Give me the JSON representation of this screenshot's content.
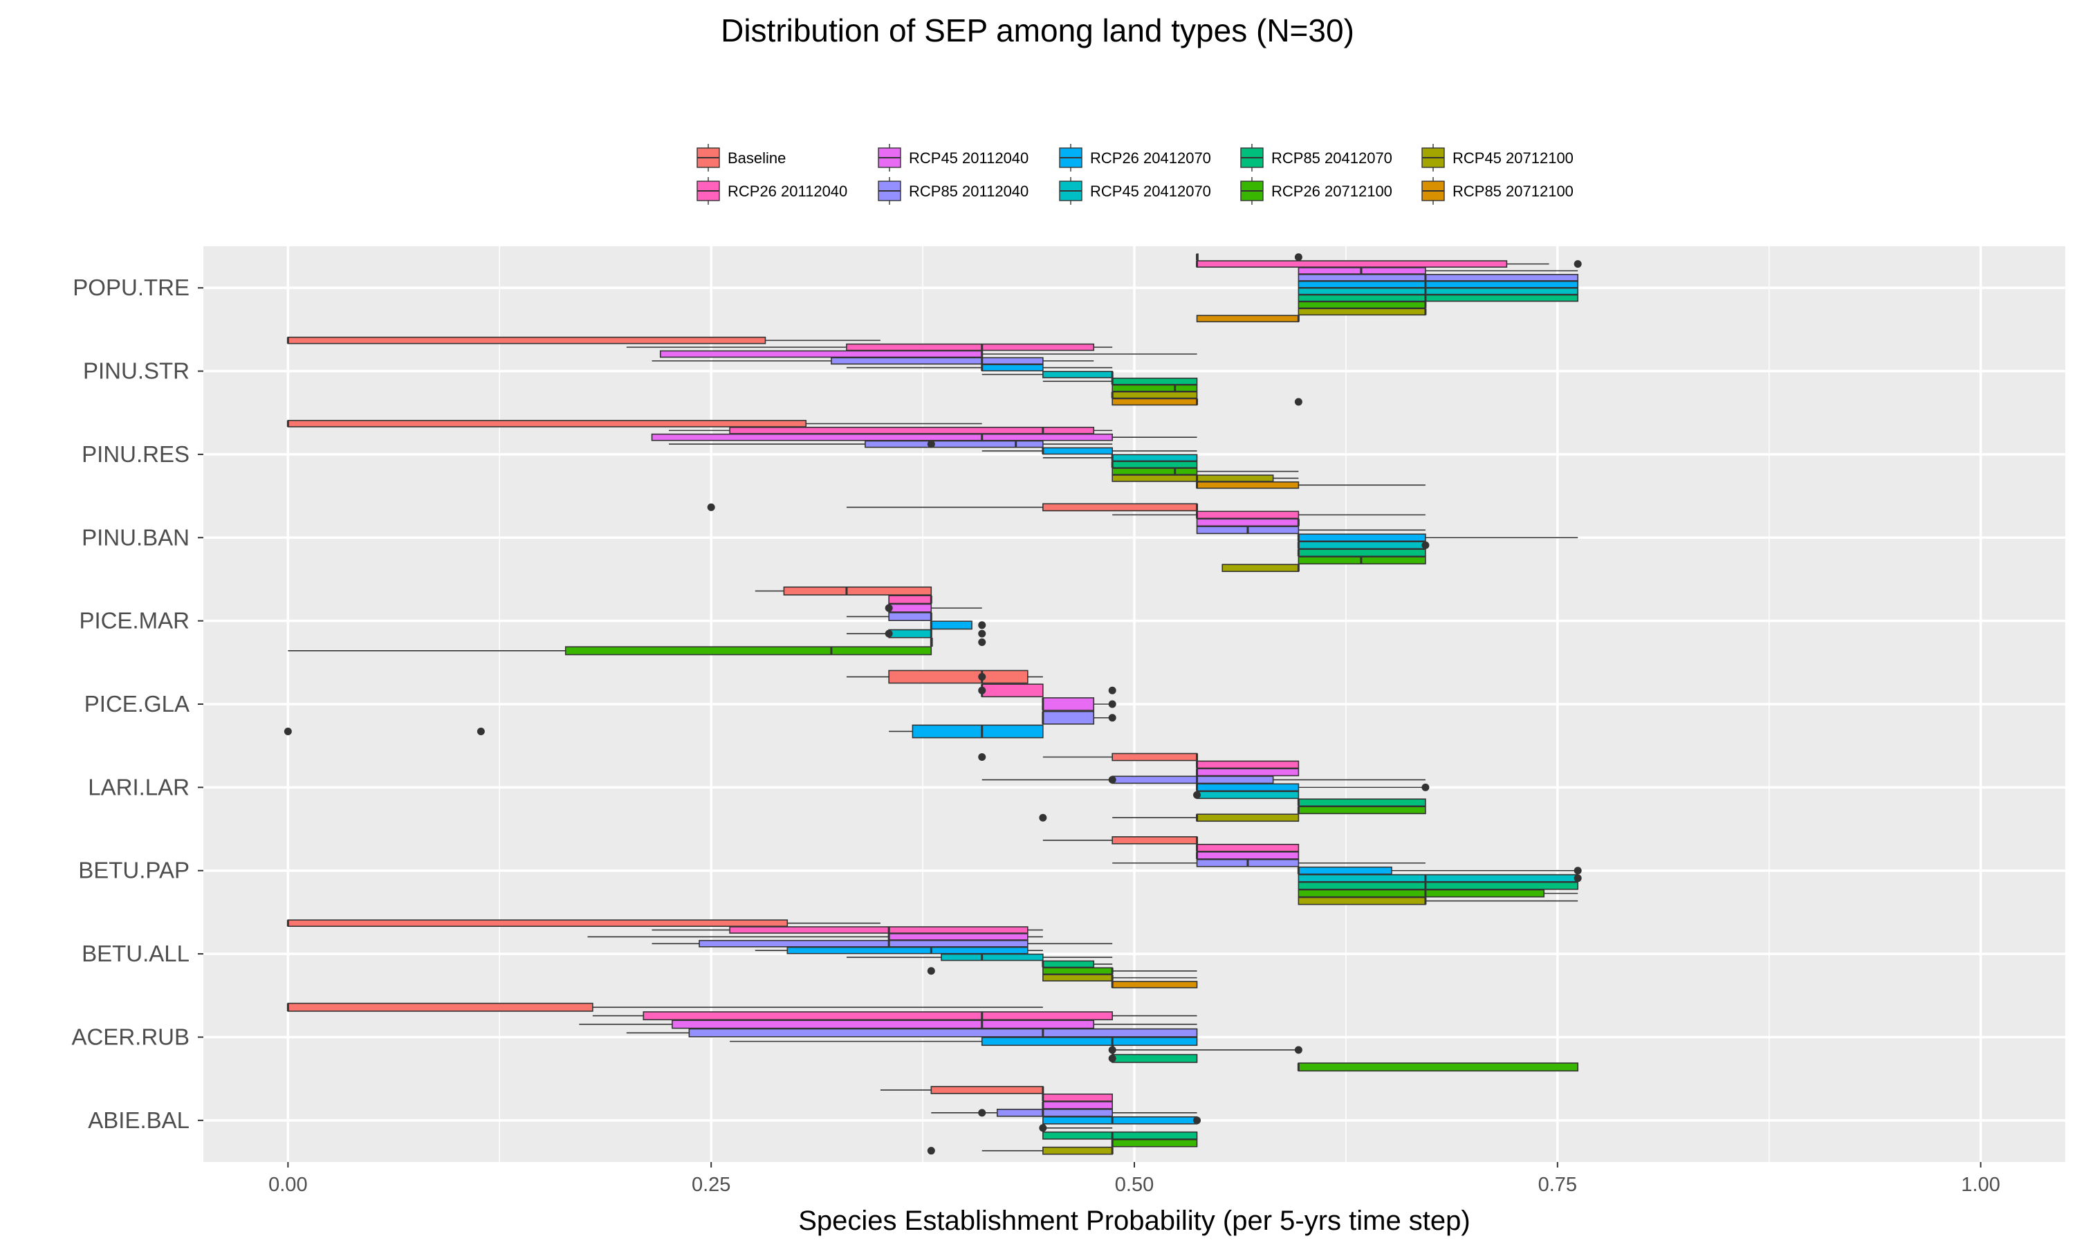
{
  "chart_data": {
    "type": "boxplot",
    "orientation": "horizontal",
    "title": "Distribution of SEP among land types (N=30)",
    "xlabel": "Species Establishment Probability (per 5-yrs time step)",
    "ylabel": "",
    "xlim": [
      -0.05,
      1.05
    ],
    "xticks": [
      0.0,
      0.25,
      0.5,
      0.75,
      1.0
    ],
    "xtick_labels": [
      "0.00",
      "0.25",
      "0.50",
      "0.75",
      "1.00"
    ],
    "grid": true,
    "legend_position": "top",
    "categories": [
      "POPU.TRE",
      "PINU.STR",
      "PINU.RES",
      "PINU.BAN",
      "PICE.MAR",
      "PICE.GLA",
      "LARI.LAR",
      "BETU.PAP",
      "BETU.ALL",
      "ACER.RUB",
      "ABIE.BAL"
    ],
    "series": [
      {
        "name": "Baseline",
        "color": "#F8766D"
      },
      {
        "name": "RCP26 20112040",
        "color": "#FF62BC"
      },
      {
        "name": "RCP45 20112040",
        "color": "#E76BF3"
      },
      {
        "name": "RCP85 20112040",
        "color": "#9590FF"
      },
      {
        "name": "RCP26 20412070",
        "color": "#00B0F6"
      },
      {
        "name": "RCP45 20412070",
        "color": "#00BFC4"
      },
      {
        "name": "RCP85 20412070",
        "color": "#00BF7D"
      },
      {
        "name": "RCP26 20712100",
        "color": "#39B600"
      },
      {
        "name": "RCP45 20712100",
        "color": "#A3A500"
      },
      {
        "name": "RCP85 20712100",
        "color": "#D89000"
      }
    ],
    "boxes": {
      "POPU.TRE": [
        [
          0.537,
          0.537,
          0.537,
          0.537,
          0.537,
          [
            0.597
          ]
        ],
        [
          0.537,
          0.537,
          0.537,
          0.72,
          0.745,
          [
            0.762
          ]
        ],
        [
          0.597,
          0.597,
          0.634,
          0.672,
          0.762,
          []
        ],
        [
          0.597,
          0.597,
          0.672,
          0.762,
          0.762,
          []
        ],
        [
          0.597,
          0.597,
          0.672,
          0.762,
          0.762,
          []
        ],
        [
          0.597,
          0.597,
          0.672,
          0.762,
          0.762,
          []
        ],
        [
          0.597,
          0.597,
          0.672,
          0.762,
          0.762,
          []
        ],
        [
          0.597,
          0.597,
          0.672,
          0.672,
          0.672,
          []
        ],
        [
          0.597,
          0.597,
          0.672,
          0.672,
          0.672,
          []
        ],
        [
          0.537,
          0.537,
          0.597,
          0.597,
          0.597,
          []
        ]
      ],
      "PINU.STR": [
        [
          0.0,
          0.0,
          0.0,
          0.282,
          0.35,
          []
        ],
        [
          0.2,
          0.33,
          0.41,
          0.476,
          0.487,
          []
        ],
        [
          0.22,
          0.22,
          0.41,
          0.41,
          0.537,
          []
        ],
        [
          0.215,
          0.321,
          0.41,
          0.446,
          0.476,
          []
        ],
        [
          0.33,
          0.41,
          0.41,
          0.446,
          0.487,
          []
        ],
        [
          0.41,
          0.446,
          0.487,
          0.487,
          0.487,
          []
        ],
        [
          0.446,
          0.487,
          0.487,
          0.537,
          0.537,
          []
        ],
        [
          0.487,
          0.487,
          0.524,
          0.537,
          0.537,
          []
        ],
        [
          0.487,
          0.487,
          0.487,
          0.537,
          0.537,
          []
        ],
        [
          0.487,
          0.487,
          0.537,
          0.537,
          0.537,
          [
            0.597
          ]
        ]
      ],
      "PINU.RES": [
        [
          0.0,
          0.0,
          0.0,
          0.306,
          0.41,
          []
        ],
        [
          0.225,
          0.261,
          0.446,
          0.476,
          0.487,
          []
        ],
        [
          0.215,
          0.215,
          0.41,
          0.487,
          0.537,
          []
        ],
        [
          0.225,
          0.341,
          0.43,
          0.446,
          0.487,
          [
            0.38
          ]
        ],
        [
          0.41,
          0.446,
          0.446,
          0.487,
          0.537,
          []
        ],
        [
          0.446,
          0.487,
          0.487,
          0.537,
          0.537,
          []
        ],
        [
          0.487,
          0.487,
          0.487,
          0.537,
          0.537,
          []
        ],
        [
          0.487,
          0.487,
          0.524,
          0.537,
          0.597,
          []
        ],
        [
          0.487,
          0.487,
          0.537,
          0.582,
          0.597,
          []
        ],
        [
          0.537,
          0.537,
          0.537,
          0.597,
          0.672,
          []
        ]
      ],
      "PINU.BAN": [
        [
          0.33,
          0.446,
          0.537,
          0.537,
          0.537,
          [
            0.25
          ]
        ],
        [
          0.487,
          0.537,
          0.537,
          0.597,
          0.672,
          []
        ],
        [
          0.537,
          0.537,
          0.597,
          0.597,
          0.597,
          []
        ],
        [
          0.537,
          0.537,
          0.567,
          0.597,
          0.672,
          []
        ],
        [
          0.597,
          0.597,
          0.597,
          0.672,
          0.762,
          []
        ],
        [
          0.597,
          0.597,
          0.597,
          0.672,
          0.672,
          [
            0.672
          ]
        ],
        [
          0.597,
          0.597,
          0.597,
          0.672,
          0.672,
          []
        ],
        [
          0.597,
          0.597,
          0.634,
          0.672,
          0.672,
          []
        ],
        [
          0.552,
          0.552,
          0.597,
          0.597,
          0.597,
          []
        ]
      ],
      "PICE.MAR": [
        [
          0.276,
          0.293,
          0.33,
          0.38,
          0.38,
          []
        ],
        [
          0.355,
          0.355,
          0.38,
          0.38,
          0.38,
          []
        ],
        [
          0.355,
          0.355,
          0.355,
          0.38,
          0.41,
          [
            0.355
          ]
        ],
        [
          0.33,
          0.355,
          0.38,
          0.38,
          0.38,
          []
        ],
        [
          0.38,
          0.38,
          0.38,
          0.404,
          0.404,
          [
            0.41
          ]
        ],
        [
          0.33,
          0.355,
          0.38,
          0.38,
          0.38,
          [
            0.355,
            0.41
          ]
        ],
        [
          0.38,
          0.38,
          0.38,
          0.38,
          0.38,
          [
            0.41
          ]
        ],
        [
          0.0,
          0.164,
          0.321,
          0.38,
          0.38,
          []
        ]
      ],
      "PICE.GLA": [
        [
          0.33,
          0.355,
          0.41,
          0.437,
          0.446,
          [
            0.41
          ]
        ],
        [
          0.41,
          0.41,
          0.41,
          0.446,
          0.446,
          [
            0.41,
            0.487
          ]
        ],
        [
          0.446,
          0.446,
          0.446,
          0.476,
          0.487,
          [
            0.487
          ]
        ],
        [
          0.446,
          0.446,
          0.446,
          0.476,
          0.487,
          [
            0.487
          ]
        ],
        [
          0.355,
          0.369,
          0.41,
          0.446,
          0.446,
          [
            0.0,
            0.114
          ]
        ]
      ],
      "LARI.LAR": [
        [
          0.446,
          0.487,
          0.537,
          0.537,
          0.537,
          [
            0.41
          ]
        ],
        [
          0.537,
          0.537,
          0.537,
          0.597,
          0.597,
          []
        ],
        [
          0.537,
          0.537,
          0.537,
          0.597,
          0.597,
          []
        ],
        [
          0.41,
          0.487,
          0.537,
          0.582,
          0.672,
          [
            0.487
          ]
        ],
        [
          0.537,
          0.537,
          0.537,
          0.597,
          0.672,
          [
            0.672
          ]
        ],
        [
          0.537,
          0.537,
          0.537,
          0.597,
          0.597,
          [
            0.537
          ]
        ],
        [
          0.597,
          0.597,
          0.597,
          0.672,
          0.672,
          []
        ],
        [
          0.597,
          0.597,
          0.597,
          0.672,
          0.672,
          []
        ],
        [
          0.487,
          0.537,
          0.537,
          0.597,
          0.597,
          [
            0.446
          ]
        ]
      ],
      "BETU.PAP": [
        [
          0.446,
          0.487,
          0.537,
          0.537,
          0.537,
          []
        ],
        [
          0.537,
          0.537,
          0.537,
          0.597,
          0.597,
          []
        ],
        [
          0.537,
          0.537,
          0.537,
          0.597,
          0.597,
          []
        ],
        [
          0.487,
          0.537,
          0.567,
          0.597,
          0.672,
          []
        ],
        [
          0.597,
          0.597,
          0.597,
          0.652,
          0.762,
          [
            0.762
          ]
        ],
        [
          0.597,
          0.597,
          0.672,
          0.762,
          0.762,
          [
            0.762
          ]
        ],
        [
          0.597,
          0.597,
          0.672,
          0.762,
          0.762,
          []
        ],
        [
          0.597,
          0.597,
          0.672,
          0.742,
          0.762,
          []
        ],
        [
          0.597,
          0.597,
          0.672,
          0.672,
          0.762,
          []
        ]
      ],
      "BETU.ALL": [
        [
          0.0,
          0.0,
          0.0,
          0.295,
          0.35,
          []
        ],
        [
          0.215,
          0.261,
          0.355,
          0.437,
          0.446,
          []
        ],
        [
          0.177,
          0.355,
          0.355,
          0.437,
          0.446,
          []
        ],
        [
          0.215,
          0.243,
          0.355,
          0.437,
          0.487,
          []
        ],
        [
          0.276,
          0.295,
          0.38,
          0.437,
          0.446,
          []
        ],
        [
          0.33,
          0.386,
          0.41,
          0.446,
          0.487,
          []
        ],
        [
          0.446,
          0.446,
          0.446,
          0.476,
          0.487,
          []
        ],
        [
          0.446,
          0.446,
          0.487,
          0.487,
          0.537,
          [
            0.38
          ]
        ],
        [
          0.446,
          0.446,
          0.487,
          0.487,
          0.537,
          []
        ],
        [
          0.487,
          0.487,
          0.487,
          0.537,
          0.537,
          []
        ]
      ],
      "ACER.RUB": [
        [
          0.0,
          0.0,
          0.0,
          0.18,
          0.446,
          []
        ],
        [
          0.18,
          0.21,
          0.41,
          0.487,
          0.537,
          []
        ],
        [
          0.172,
          0.227,
          0.41,
          0.476,
          0.537,
          []
        ],
        [
          0.2,
          0.237,
          0.446,
          0.537,
          0.537,
          []
        ],
        [
          0.261,
          0.41,
          0.487,
          0.537,
          0.537,
          []
        ],
        [
          0.487,
          0.487,
          0.487,
          0.487,
          0.597,
          [
            0.487,
            0.597
          ]
        ],
        [
          0.487,
          0.487,
          0.487,
          0.537,
          0.537,
          [
            0.487
          ]
        ],
        [
          0.597,
          0.597,
          0.597,
          0.762,
          0.762,
          []
        ]
      ],
      "ABIE.BAL": [
        [
          0.35,
          0.38,
          0.446,
          0.446,
          0.446,
          []
        ],
        [
          0.446,
          0.446,
          0.446,
          0.487,
          0.487,
          []
        ],
        [
          0.446,
          0.446,
          0.446,
          0.487,
          0.487,
          []
        ],
        [
          0.38,
          0.419,
          0.446,
          0.487,
          0.537,
          [
            0.41
          ]
        ],
        [
          0.446,
          0.446,
          0.487,
          0.537,
          0.537,
          [
            0.537
          ]
        ],
        [
          0.446,
          0.446,
          0.446,
          0.446,
          0.487,
          [
            0.446
          ]
        ],
        [
          0.446,
          0.446,
          0.487,
          0.537,
          0.537,
          []
        ],
        [
          0.487,
          0.487,
          0.487,
          0.537,
          0.537,
          []
        ],
        [
          0.41,
          0.446,
          0.487,
          0.487,
          0.487,
          [
            0.38
          ]
        ]
      ]
    }
  }
}
